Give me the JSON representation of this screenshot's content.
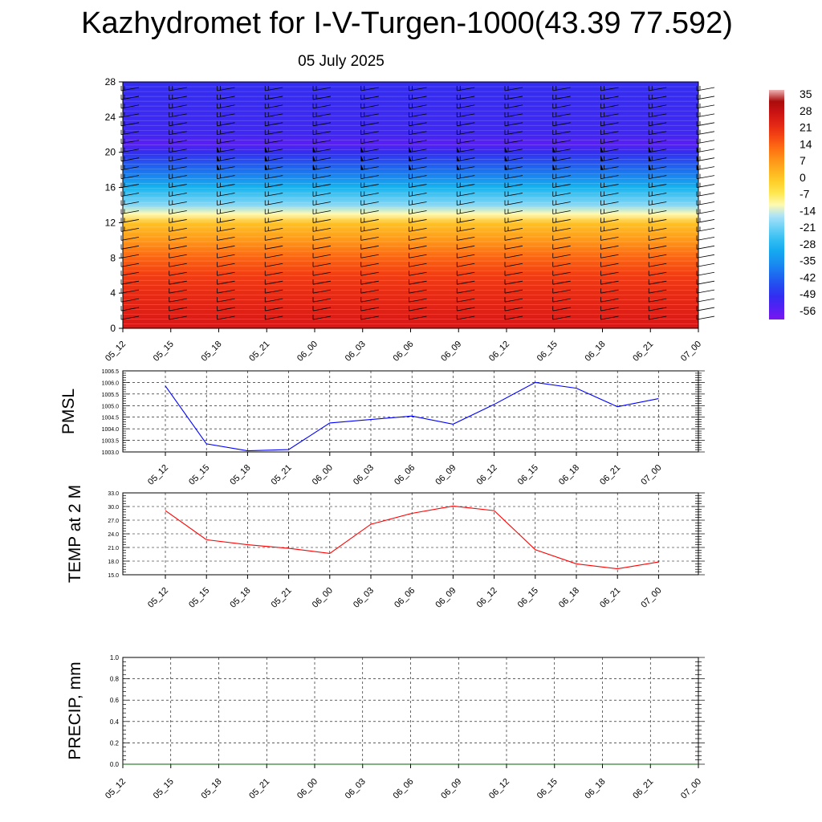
{
  "page": {
    "title": "Kazhydromet for I-V-Turgen-1000(43.39 77.592)",
    "date": "05 July 2025"
  },
  "time_labels": [
    "05_12",
    "05_15",
    "05_18",
    "05_21",
    "06_00",
    "06_03",
    "06_06",
    "06_09",
    "06_12",
    "06_15",
    "06_18",
    "06_21",
    "07_00"
  ],
  "chart_data": [
    {
      "type": "heatmap",
      "title": "",
      "ylim": [
        0,
        28
      ],
      "yticks": [
        0,
        4,
        8,
        12,
        16,
        20,
        24,
        28
      ],
      "x": [
        "05_12",
        "05_15",
        "05_18",
        "05_21",
        "06_00",
        "06_03",
        "06_06",
        "06_09",
        "06_12",
        "06_15",
        "06_18",
        "06_21",
        "07_00"
      ],
      "color_levels": [
        35,
        28,
        21,
        14,
        7,
        0,
        -7,
        -14,
        -21,
        -28,
        -35,
        -42,
        -49,
        -56
      ],
      "colorbar_labels": [
        "35",
        "28",
        "21",
        "14",
        "7",
        "0",
        "-7",
        "-14",
        "-21",
        "-28",
        "-35",
        "-42",
        "-49",
        "-56"
      ],
      "temperature_profile": [
        {
          "level": 0,
          "value": 28
        },
        {
          "level": 2,
          "value": 26
        },
        {
          "level": 4,
          "value": 24
        },
        {
          "level": 6,
          "value": 21
        },
        {
          "level": 8,
          "value": 16
        },
        {
          "level": 10,
          "value": 9
        },
        {
          "level": 12,
          "value": 2
        },
        {
          "level": 13,
          "value": -10
        },
        {
          "level": 14,
          "value": -18
        },
        {
          "level": 16,
          "value": -28
        },
        {
          "level": 18,
          "value": -40
        },
        {
          "level": 20,
          "value": -50
        },
        {
          "level": 21,
          "value": -56
        },
        {
          "level": 22,
          "value": -52
        },
        {
          "level": 28,
          "value": -50
        }
      ],
      "wind_barbs": "shown",
      "grid": false
    },
    {
      "type": "line",
      "ylabel": "PMSL",
      "ylim": [
        1003.0,
        1006.5
      ],
      "yticks": [
        "1003.0",
        "1003.5",
        "1004.0",
        "1004.5",
        "1005.0",
        "1005.5",
        "1006.0",
        "1006.5"
      ],
      "x": [
        "05_12",
        "05_15",
        "05_18",
        "05_21",
        "06_00",
        "06_03",
        "06_06",
        "06_09",
        "06_12",
        "06_15",
        "06_18",
        "06_21",
        "07_00"
      ],
      "values": [
        1005.85,
        1003.35,
        1003.05,
        1003.1,
        1004.25,
        1004.4,
        1004.55,
        1004.2,
        1005.05,
        1006.0,
        1005.75,
        1004.95,
        1005.3
      ],
      "color": "#0000ff",
      "grid": true
    },
    {
      "type": "line",
      "ylabel": "TEMP at 2 M",
      "ylim": [
        15.0,
        33.0
      ],
      "yticks": [
        "15.0",
        "18.0",
        "21.0",
        "24.0",
        "27.0",
        "30.0",
        "33.0"
      ],
      "x": [
        "05_12",
        "05_15",
        "05_18",
        "05_21",
        "06_00",
        "06_03",
        "06_06",
        "06_09",
        "06_12",
        "06_15",
        "06_18",
        "06_21",
        "07_00"
      ],
      "values": [
        29.1,
        22.7,
        21.6,
        20.8,
        19.7,
        26.1,
        28.5,
        30.1,
        29.1,
        20.5,
        17.4,
        16.3,
        17.8
      ],
      "color": "#ff0000",
      "grid": true
    },
    {
      "type": "line",
      "ylabel": "PRECIP, mm",
      "ylim": [
        0.0,
        1.0
      ],
      "yticks": [
        "0.0",
        "0.2",
        "0.4",
        "0.6",
        "0.8",
        "1.0"
      ],
      "x": [
        "05_12",
        "05_15",
        "05_18",
        "05_21",
        "06_00",
        "06_03",
        "06_06",
        "06_09",
        "06_12",
        "06_15",
        "06_18",
        "06_21",
        "07_00"
      ],
      "values": [
        0,
        0,
        0,
        0,
        0,
        0,
        0,
        0,
        0,
        0,
        0,
        0,
        0
      ],
      "color": "#006400",
      "grid": true
    }
  ]
}
